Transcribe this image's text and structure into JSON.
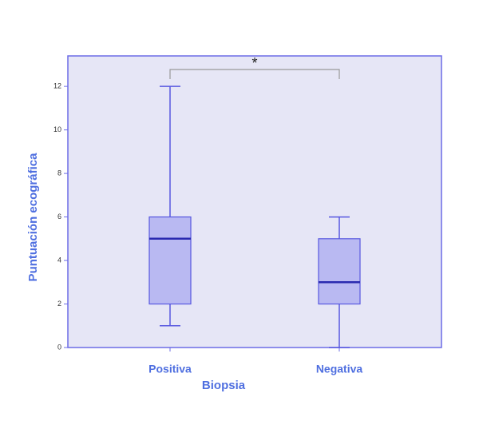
{
  "chart_data": {
    "type": "box",
    "xlabel": "Biopsia",
    "ylabel": "Puntuación ecográfica",
    "categories": [
      "Positiva",
      "Negativa"
    ],
    "min": [
      1,
      0
    ],
    "q1": [
      2,
      2
    ],
    "median": [
      5,
      3
    ],
    "q3": [
      6,
      5
    ],
    "max": [
      12,
      6
    ],
    "color": "#b9b9f2",
    "annotation": "*",
    "ylim": [
      0,
      13.4
    ],
    "yticks": [
      0,
      2,
      4,
      6,
      8,
      10,
      12
    ]
  }
}
